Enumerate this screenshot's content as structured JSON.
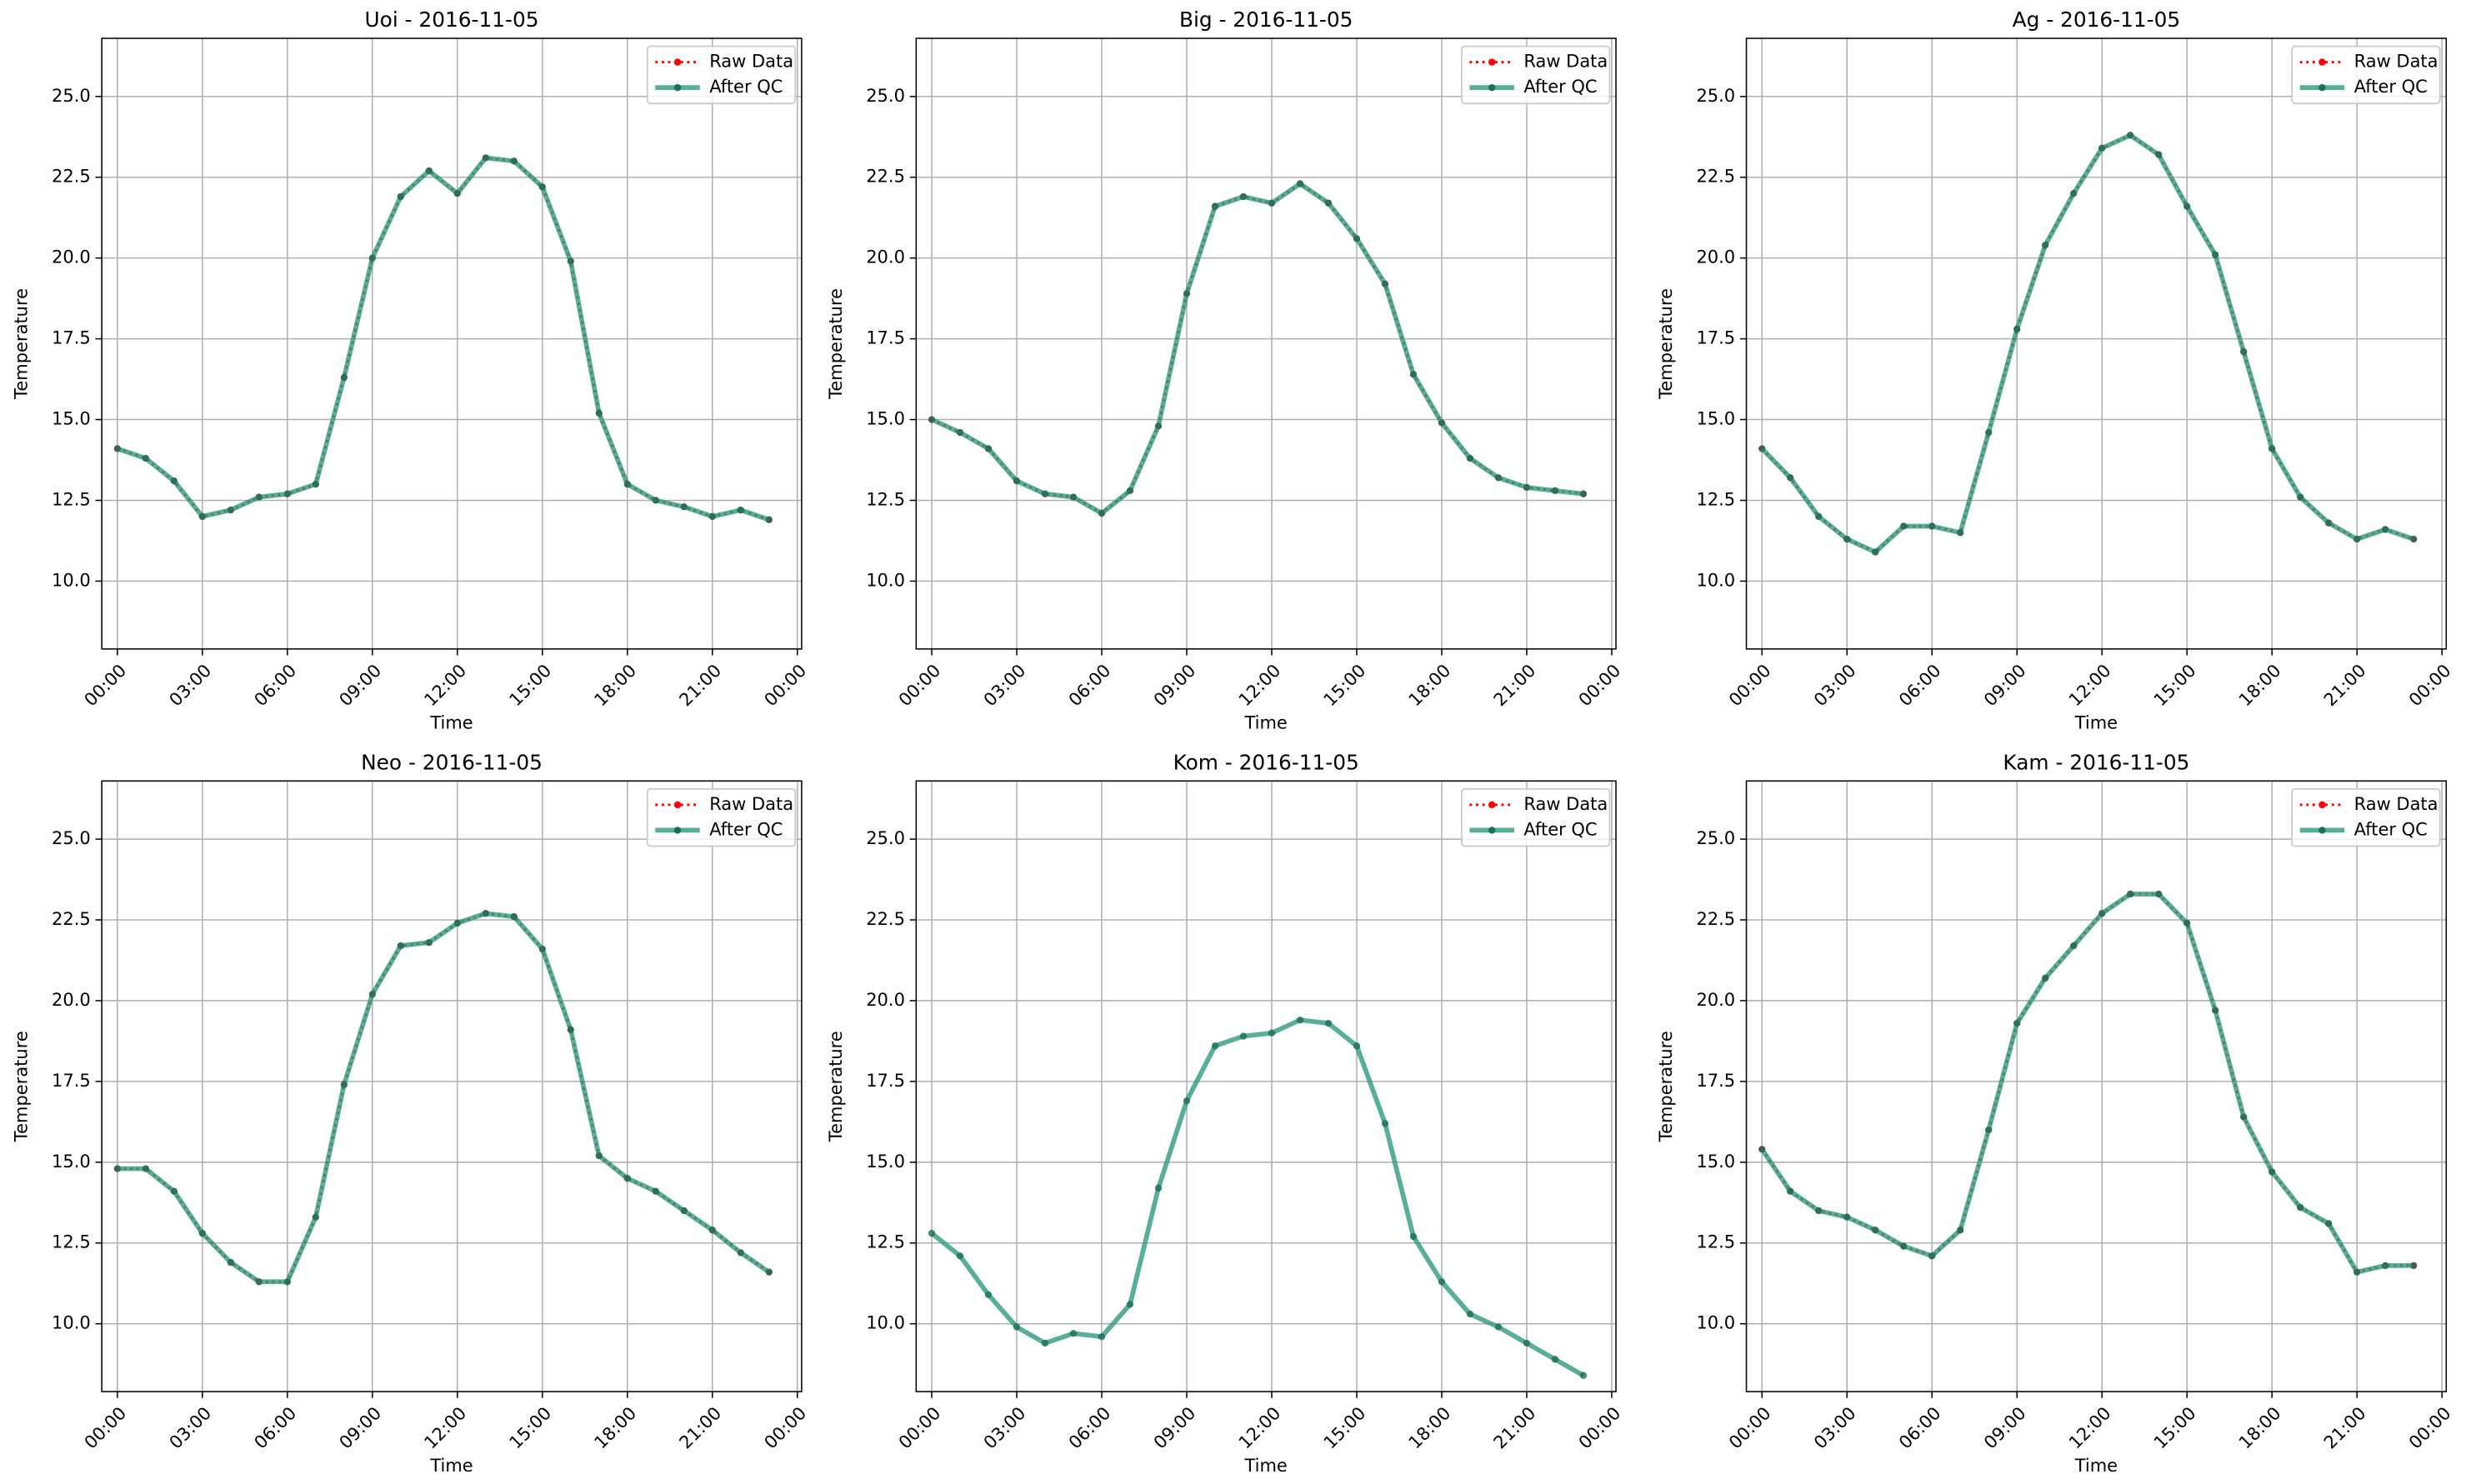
{
  "chart_data": [
    {
      "type": "line",
      "title": "Uoi - 2016-11-05",
      "xlabel": "Time",
      "ylabel": "Temperature",
      "x": [
        0,
        1,
        2,
        3,
        4,
        5,
        6,
        7,
        8,
        9,
        10,
        11,
        12,
        13,
        14,
        15,
        16,
        17,
        18,
        19,
        20,
        21,
        22,
        23
      ],
      "series": [
        {
          "name": "Raw Data",
          "color": "#ff0000",
          "values": [
            14.1,
            13.8,
            13.1,
            12.0,
            12.2,
            12.6,
            12.7,
            13.0,
            16.3,
            20.0,
            21.9,
            22.7,
            22.0,
            23.1,
            23.0,
            22.2,
            19.9,
            15.2,
            13.0,
            12.5,
            12.3,
            12.0,
            12.2,
            11.9
          ]
        },
        {
          "name": "After QC",
          "color": "#2e9a7e",
          "values": [
            14.1,
            13.8,
            13.1,
            12.0,
            12.2,
            12.6,
            12.7,
            13.0,
            16.3,
            20.0,
            21.9,
            22.7,
            22.0,
            23.1,
            23.0,
            22.2,
            19.9,
            15.2,
            13.0,
            12.5,
            12.3,
            12.0,
            12.2,
            11.9
          ]
        }
      ],
      "xlim": [
        -0.55,
        24.15
      ],
      "ylim": [
        7.9,
        26.8
      ],
      "xticks": [
        {
          "value": 0,
          "label": "00:00"
        },
        {
          "value": 3,
          "label": "03:00"
        },
        {
          "value": 6,
          "label": "06:00"
        },
        {
          "value": 9,
          "label": "09:00"
        },
        {
          "value": 12,
          "label": "12:00"
        },
        {
          "value": 15,
          "label": "15:00"
        },
        {
          "value": 18,
          "label": "18:00"
        },
        {
          "value": 21,
          "label": "21:00"
        },
        {
          "value": 24,
          "label": "00:00"
        }
      ],
      "yticks": [
        {
          "value": 10,
          "label": "10.0"
        },
        {
          "value": 12.5,
          "label": "12.5"
        },
        {
          "value": 15,
          "label": "15.0"
        },
        {
          "value": 17.5,
          "label": "17.5"
        },
        {
          "value": 20,
          "label": "20.0"
        },
        {
          "value": 22.5,
          "label": "22.5"
        },
        {
          "value": 25,
          "label": "25.0"
        }
      ],
      "grid": true,
      "legend": "upper right"
    },
    {
      "type": "line",
      "title": "Big - 2016-11-05",
      "xlabel": "Time",
      "ylabel": "Temperature",
      "x": [
        0,
        1,
        2,
        3,
        4,
        5,
        6,
        7,
        8,
        9,
        10,
        11,
        12,
        13,
        14,
        15,
        16,
        17,
        18,
        19,
        20,
        21,
        22,
        23
      ],
      "series": [
        {
          "name": "Raw Data",
          "color": "#ff0000",
          "values": [
            15.0,
            14.6,
            14.1,
            13.1,
            12.7,
            12.6,
            12.1,
            12.8,
            14.8,
            18.9,
            21.6,
            21.9,
            21.7,
            22.3,
            21.7,
            20.6,
            19.2,
            16.4,
            14.9,
            13.8,
            13.2,
            12.9,
            12.8,
            12.7
          ]
        },
        {
          "name": "After QC",
          "color": "#2e9a7e",
          "values": [
            15.0,
            14.6,
            14.1,
            13.1,
            12.7,
            12.6,
            12.1,
            12.8,
            14.8,
            18.9,
            21.6,
            21.9,
            21.7,
            22.3,
            21.7,
            20.6,
            19.2,
            16.4,
            14.9,
            13.8,
            13.2,
            12.9,
            12.8,
            12.7
          ]
        }
      ],
      "xlim": [
        -0.55,
        24.15
      ],
      "ylim": [
        7.9,
        26.8
      ],
      "xticks": [
        {
          "value": 0,
          "label": "00:00"
        },
        {
          "value": 3,
          "label": "03:00"
        },
        {
          "value": 6,
          "label": "06:00"
        },
        {
          "value": 9,
          "label": "09:00"
        },
        {
          "value": 12,
          "label": "12:00"
        },
        {
          "value": 15,
          "label": "15:00"
        },
        {
          "value": 18,
          "label": "18:00"
        },
        {
          "value": 21,
          "label": "21:00"
        },
        {
          "value": 24,
          "label": "00:00"
        }
      ],
      "yticks": [
        {
          "value": 10,
          "label": "10.0"
        },
        {
          "value": 12.5,
          "label": "12.5"
        },
        {
          "value": 15,
          "label": "15.0"
        },
        {
          "value": 17.5,
          "label": "17.5"
        },
        {
          "value": 20,
          "label": "20.0"
        },
        {
          "value": 22.5,
          "label": "22.5"
        },
        {
          "value": 25,
          "label": "25.0"
        }
      ],
      "grid": true,
      "legend": "upper right"
    },
    {
      "type": "line",
      "title": "Ag - 2016-11-05",
      "xlabel": "Time",
      "ylabel": "Temperature",
      "x": [
        0,
        1,
        2,
        3,
        4,
        5,
        6,
        7,
        8,
        9,
        10,
        11,
        12,
        13,
        14,
        15,
        16,
        17,
        18,
        19,
        20,
        21,
        22,
        23
      ],
      "series": [
        {
          "name": "Raw Data",
          "color": "#ff0000",
          "values": [
            14.1,
            13.2,
            12.0,
            11.3,
            10.9,
            11.7,
            11.7,
            11.5,
            14.6,
            17.8,
            20.4,
            22.0,
            23.4,
            23.8,
            23.2,
            21.6,
            20.1,
            17.1,
            14.1,
            12.6,
            11.8,
            11.3,
            11.6,
            11.3
          ]
        },
        {
          "name": "After QC",
          "color": "#2e9a7e",
          "values": [
            14.1,
            13.2,
            12.0,
            11.3,
            10.9,
            11.7,
            11.7,
            11.5,
            14.6,
            17.8,
            20.4,
            22.0,
            23.4,
            23.8,
            23.2,
            21.6,
            20.1,
            17.1,
            14.1,
            12.6,
            11.8,
            11.3,
            11.6,
            11.3
          ]
        }
      ],
      "xlim": [
        -0.55,
        24.15
      ],
      "ylim": [
        7.9,
        26.8
      ],
      "xticks": [
        {
          "value": 0,
          "label": "00:00"
        },
        {
          "value": 3,
          "label": "03:00"
        },
        {
          "value": 6,
          "label": "06:00"
        },
        {
          "value": 9,
          "label": "09:00"
        },
        {
          "value": 12,
          "label": "12:00"
        },
        {
          "value": 15,
          "label": "15:00"
        },
        {
          "value": 18,
          "label": "18:00"
        },
        {
          "value": 21,
          "label": "21:00"
        },
        {
          "value": 24,
          "label": "00:00"
        }
      ],
      "yticks": [
        {
          "value": 10,
          "label": "10.0"
        },
        {
          "value": 12.5,
          "label": "12.5"
        },
        {
          "value": 15,
          "label": "15.0"
        },
        {
          "value": 17.5,
          "label": "17.5"
        },
        {
          "value": 20,
          "label": "20.0"
        },
        {
          "value": 22.5,
          "label": "22.5"
        },
        {
          "value": 25,
          "label": "25.0"
        }
      ],
      "grid": true,
      "legend": "upper right"
    },
    {
      "type": "line",
      "title": "Neo - 2016-11-05",
      "xlabel": "Time",
      "ylabel": "Temperature",
      "x": [
        0,
        1,
        2,
        3,
        4,
        5,
        6,
        7,
        8,
        9,
        10,
        11,
        12,
        13,
        14,
        15,
        16,
        17,
        18,
        19,
        20,
        21,
        22,
        23
      ],
      "series": [
        {
          "name": "Raw Data",
          "color": "#ff0000",
          "values": [
            14.8,
            14.8,
            14.1,
            12.8,
            11.9,
            11.3,
            11.3,
            13.3,
            17.4,
            20.2,
            21.7,
            21.8,
            22.4,
            22.7,
            22.6,
            21.6,
            19.1,
            15.2,
            14.5,
            14.1,
            13.5,
            12.9,
            12.2,
            11.6
          ]
        },
        {
          "name": "After QC",
          "color": "#2e9a7e",
          "values": [
            14.8,
            14.8,
            14.1,
            12.8,
            11.9,
            11.3,
            11.3,
            13.3,
            17.4,
            20.2,
            21.7,
            21.8,
            22.4,
            22.7,
            22.6,
            21.6,
            19.1,
            15.2,
            14.5,
            14.1,
            13.5,
            12.9,
            12.2,
            11.6
          ]
        }
      ],
      "xlim": [
        -0.55,
        24.15
      ],
      "ylim": [
        7.9,
        26.8
      ],
      "xticks": [
        {
          "value": 0,
          "label": "00:00"
        },
        {
          "value": 3,
          "label": "03:00"
        },
        {
          "value": 6,
          "label": "06:00"
        },
        {
          "value": 9,
          "label": "09:00"
        },
        {
          "value": 12,
          "label": "12:00"
        },
        {
          "value": 15,
          "label": "15:00"
        },
        {
          "value": 18,
          "label": "18:00"
        },
        {
          "value": 21,
          "label": "21:00"
        },
        {
          "value": 24,
          "label": "00:00"
        }
      ],
      "yticks": [
        {
          "value": 10,
          "label": "10.0"
        },
        {
          "value": 12.5,
          "label": "12.5"
        },
        {
          "value": 15,
          "label": "15.0"
        },
        {
          "value": 17.5,
          "label": "17.5"
        },
        {
          "value": 20,
          "label": "20.0"
        },
        {
          "value": 22.5,
          "label": "22.5"
        },
        {
          "value": 25,
          "label": "25.0"
        }
      ],
      "grid": true,
      "legend": "upper right"
    },
    {
      "type": "line",
      "title": "Kom - 2016-11-05",
      "xlabel": "Time",
      "ylabel": "Temperature",
      "x": [
        0,
        1,
        2,
        3,
        4,
        5,
        6,
        7,
        8,
        9,
        10,
        11,
        12,
        13,
        14,
        15,
        16,
        17,
        18,
        19,
        20,
        21,
        22,
        23
      ],
      "series": [
        {
          "name": "Raw Data",
          "color": "#ff0000",
          "values": [
            null,
            null,
            null,
            null,
            null,
            null,
            null,
            null,
            null,
            null,
            null,
            null,
            null,
            null,
            null,
            null,
            null,
            null,
            null,
            null,
            null,
            null,
            null,
            null
          ]
        },
        {
          "name": "After QC",
          "color": "#2e9a7e",
          "values": [
            12.8,
            12.1,
            10.9,
            9.9,
            9.4,
            9.7,
            9.6,
            10.6,
            14.2,
            16.9,
            18.6,
            18.9,
            19.0,
            19.4,
            19.3,
            18.6,
            16.2,
            12.7,
            11.3,
            10.3,
            9.9,
            9.4,
            8.9,
            8.4
          ]
        }
      ],
      "xlim": [
        -0.55,
        24.15
      ],
      "ylim": [
        7.9,
        26.8
      ],
      "xticks": [
        {
          "value": 0,
          "label": "00:00"
        },
        {
          "value": 3,
          "label": "03:00"
        },
        {
          "value": 6,
          "label": "06:00"
        },
        {
          "value": 9,
          "label": "09:00"
        },
        {
          "value": 12,
          "label": "12:00"
        },
        {
          "value": 15,
          "label": "15:00"
        },
        {
          "value": 18,
          "label": "18:00"
        },
        {
          "value": 21,
          "label": "21:00"
        },
        {
          "value": 24,
          "label": "00:00"
        }
      ],
      "yticks": [
        {
          "value": 10,
          "label": "10.0"
        },
        {
          "value": 12.5,
          "label": "12.5"
        },
        {
          "value": 15,
          "label": "15.0"
        },
        {
          "value": 17.5,
          "label": "17.5"
        },
        {
          "value": 20,
          "label": "20.0"
        },
        {
          "value": 22.5,
          "label": "22.5"
        },
        {
          "value": 25,
          "label": "25.0"
        }
      ],
      "grid": true,
      "legend": "upper right"
    },
    {
      "type": "line",
      "title": "Kam - 2016-11-05",
      "xlabel": "Time",
      "ylabel": "Temperature",
      "x": [
        0,
        1,
        2,
        3,
        4,
        5,
        6,
        7,
        8,
        9,
        10,
        11,
        12,
        13,
        14,
        15,
        16,
        17,
        18,
        19,
        20,
        21,
        22,
        23
      ],
      "series": [
        {
          "name": "Raw Data",
          "color": "#ff0000",
          "values": [
            15.4,
            14.1,
            13.5,
            13.3,
            12.9,
            12.4,
            12.1,
            12.9,
            16.0,
            19.3,
            20.7,
            21.7,
            22.7,
            23.3,
            23.3,
            22.4,
            19.7,
            16.4,
            14.7,
            13.6,
            13.1,
            11.6,
            11.8,
            11.8
          ]
        },
        {
          "name": "After QC",
          "color": "#2e9a7e",
          "values": [
            15.4,
            14.1,
            13.5,
            13.3,
            12.9,
            12.4,
            12.1,
            12.9,
            16.0,
            19.3,
            20.7,
            21.7,
            22.7,
            23.3,
            23.3,
            22.4,
            19.7,
            16.4,
            14.7,
            13.6,
            13.1,
            11.6,
            11.8,
            11.8
          ]
        }
      ],
      "xlim": [
        -0.55,
        24.15
      ],
      "ylim": [
        7.9,
        26.8
      ],
      "xticks": [
        {
          "value": 0,
          "label": "00:00"
        },
        {
          "value": 3,
          "label": "03:00"
        },
        {
          "value": 6,
          "label": "06:00"
        },
        {
          "value": 9,
          "label": "09:00"
        },
        {
          "value": 12,
          "label": "12:00"
        },
        {
          "value": 15,
          "label": "15:00"
        },
        {
          "value": 18,
          "label": "18:00"
        },
        {
          "value": 21,
          "label": "21:00"
        },
        {
          "value": 24,
          "label": "00:00"
        }
      ],
      "yticks": [
        {
          "value": 10,
          "label": "10.0"
        },
        {
          "value": 12.5,
          "label": "12.5"
        },
        {
          "value": 15,
          "label": "15.0"
        },
        {
          "value": 17.5,
          "label": "17.5"
        },
        {
          "value": 20,
          "label": "20.0"
        },
        {
          "value": 22.5,
          "label": "22.5"
        },
        {
          "value": 25,
          "label": "25.0"
        }
      ],
      "grid": true,
      "legend": "upper right"
    }
  ]
}
